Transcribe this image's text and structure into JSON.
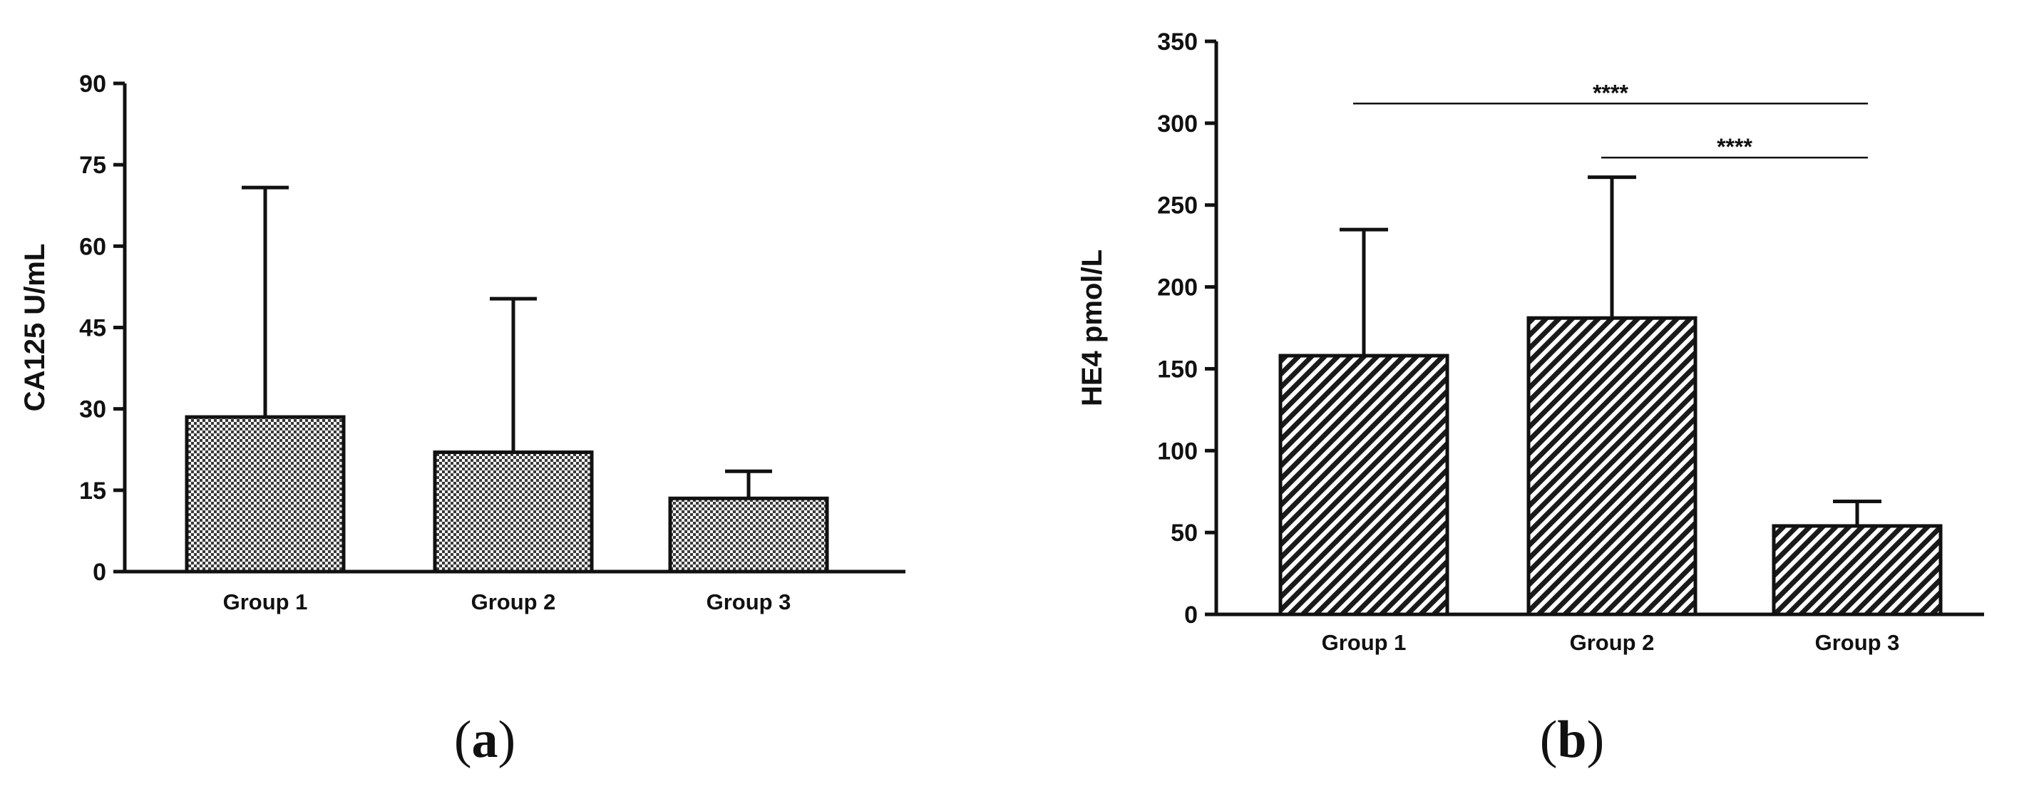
{
  "chart_data": [
    {
      "type": "bar",
      "panel_label": "a",
      "ylabel": "CA125 U/mL",
      "xlabel": "",
      "categories": [
        "Group 1",
        "Group 2",
        "Group 3"
      ],
      "values": [
        28.5,
        22,
        13.5
      ],
      "error_upper": [
        70.8,
        50.3,
        18.5
      ],
      "ylim": [
        0,
        90
      ],
      "yticks": [
        0,
        15,
        30,
        45,
        60,
        75,
        90
      ],
      "fill_pattern": "crosshatch",
      "grid": false,
      "significance": []
    },
    {
      "type": "bar",
      "panel_label": "b",
      "ylabel": "HE4 pmol/L",
      "xlabel": "",
      "categories": [
        "Group 1",
        "Group 2",
        "Group 3"
      ],
      "values": [
        158,
        181,
        54
      ],
      "error_upper": [
        235,
        267,
        69
      ],
      "ylim": [
        0,
        350
      ],
      "yticks": [
        0,
        50,
        100,
        150,
        200,
        250,
        300,
        350
      ],
      "fill_pattern": "diagonal",
      "grid": false,
      "significance": [
        {
          "from": "Group 1",
          "to": "Group 3",
          "label": "****",
          "y": 312
        },
        {
          "from": "Group 2",
          "to": "Group 3",
          "label": "****",
          "y": 279
        }
      ]
    }
  ]
}
